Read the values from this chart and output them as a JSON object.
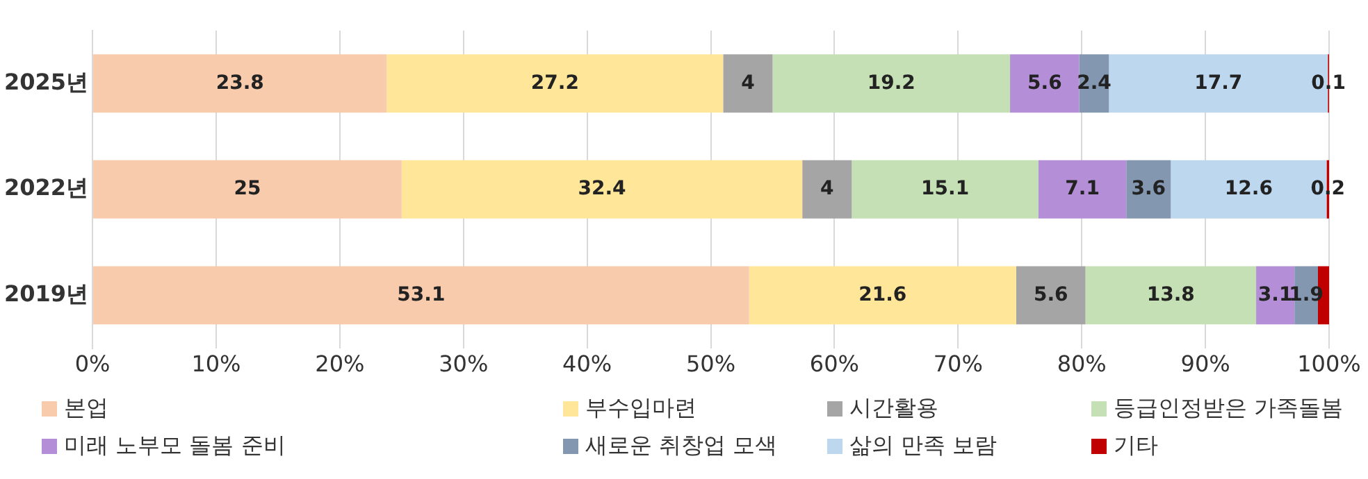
{
  "chart_data": {
    "type": "bar",
    "orientation": "horizontal",
    "stacked": true,
    "categories": [
      "2025년",
      "2022년",
      "2019년"
    ],
    "series": [
      {
        "name": "본업",
        "color": "#f8cbad",
        "values": [
          23.8,
          25,
          53.1
        ],
        "value_labels": [
          "23.8",
          "25",
          "53.1"
        ]
      },
      {
        "name": "부수입마련",
        "color": "#ffe699",
        "values": [
          27.2,
          32.4,
          21.6
        ],
        "value_labels": [
          "27.2",
          "32.4",
          "21.6"
        ]
      },
      {
        "name": "시간활용",
        "color": "#a5a5a5",
        "values": [
          4,
          4,
          5.6
        ],
        "value_labels": [
          "4",
          "4",
          "5.6"
        ]
      },
      {
        "name": "등급인정받은 가족돌봄",
        "color": "#c5e0b4",
        "values": [
          19.2,
          15.1,
          13.8
        ],
        "value_labels": [
          "19.2",
          "15.1",
          "13.8"
        ]
      },
      {
        "name": "미래 노부모 돌봄 준비",
        "color": "#b48fd8",
        "values": [
          5.6,
          7.1,
          3.1
        ],
        "value_labels": [
          "5.6",
          "7.1",
          "3.1"
        ]
      },
      {
        "name": "새로운 취창업 모색",
        "color": "#8497b0",
        "values": [
          2.4,
          3.6,
          1.9
        ],
        "value_labels": [
          "2.4",
          "3.6",
          "1.9"
        ]
      },
      {
        "name": "삶의 만족 보람",
        "color": "#bdd7ee",
        "values": [
          17.7,
          12.6,
          0
        ],
        "value_labels": [
          "17.7",
          "12.6",
          null
        ]
      },
      {
        "name": "기타",
        "color": "#c00000",
        "values": [
          0.1,
          0.2,
          0.9
        ],
        "value_labels": [
          "0.1",
          "0.2",
          null
        ]
      }
    ],
    "xlim": [
      0,
      100
    ],
    "xticks": [
      {
        "value": 0,
        "label": "0%"
      },
      {
        "value": 10,
        "label": "10%"
      },
      {
        "value": 20,
        "label": "20%"
      },
      {
        "value": 30,
        "label": "30%"
      },
      {
        "value": 40,
        "label": "40%"
      },
      {
        "value": 50,
        "label": "50%"
      },
      {
        "value": 60,
        "label": "60%"
      },
      {
        "value": 70,
        "label": "70%"
      },
      {
        "value": 80,
        "label": "80%"
      },
      {
        "value": 90,
        "label": "90%"
      },
      {
        "value": 100,
        "label": "100%"
      }
    ],
    "grid": "x",
    "legend": "bottom"
  }
}
